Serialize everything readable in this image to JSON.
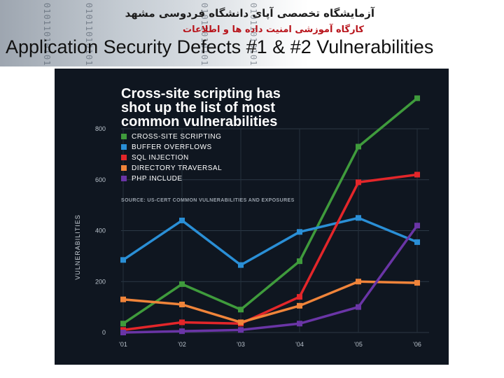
{
  "header": {
    "lab_name": "آزمایشگاه تخصصی آپای دانشگاه فردوسی مشهد",
    "lab_subtitle": "کارگاه آموزشی امنیت داده ها و اطلاعات",
    "background_code_text": "010110101010110",
    "slide_title": "Application Security Defects #1 & #2 Vulnerabilities"
  },
  "colors": {
    "chart_background": "#0f1620",
    "cross_site_scripting": "#3f9b3c",
    "buffer_overflows": "#2a8fd6",
    "sql_injection": "#e3262a",
    "directory_traversal": "#f0843a",
    "php_include": "#6a35a6"
  },
  "chart_data": {
    "type": "line",
    "title_lines": [
      "Cross-site scripting has",
      "shot up the list of most",
      "common vulnerabilities"
    ],
    "source": "SOURCE: US-CERT COMMON VULNERABILITIES AND EXPOSURES",
    "ylabel": "VULNERABILITIES",
    "xlabel": "",
    "categories": [
      "'01",
      "'02",
      "'03",
      "'04",
      "'05",
      "'06"
    ],
    "ylim": [
      0,
      800
    ],
    "yticks": [
      "0",
      "200",
      "400",
      "600",
      "800"
    ],
    "grid": true,
    "legend_position": "top-left",
    "series": [
      {
        "name": "CROSS-SITE SCRIPTING",
        "color": "#3f9b3c",
        "values": [
          35,
          190,
          90,
          280,
          730,
          920
        ]
      },
      {
        "name": "BUFFER OVERFLOWS",
        "color": "#2a8fd6",
        "values": [
          285,
          440,
          265,
          395,
          450,
          355
        ]
      },
      {
        "name": "SQL INJECTION",
        "color": "#e3262a",
        "values": [
          10,
          40,
          35,
          140,
          590,
          620
        ]
      },
      {
        "name": "DIRECTORY TRAVERSAL",
        "color": "#f0843a",
        "values": [
          130,
          110,
          40,
          105,
          200,
          195
        ]
      },
      {
        "name": "PHP INCLUDE",
        "color": "#6a35a6",
        "values": [
          0,
          5,
          10,
          35,
          100,
          420
        ]
      }
    ]
  }
}
